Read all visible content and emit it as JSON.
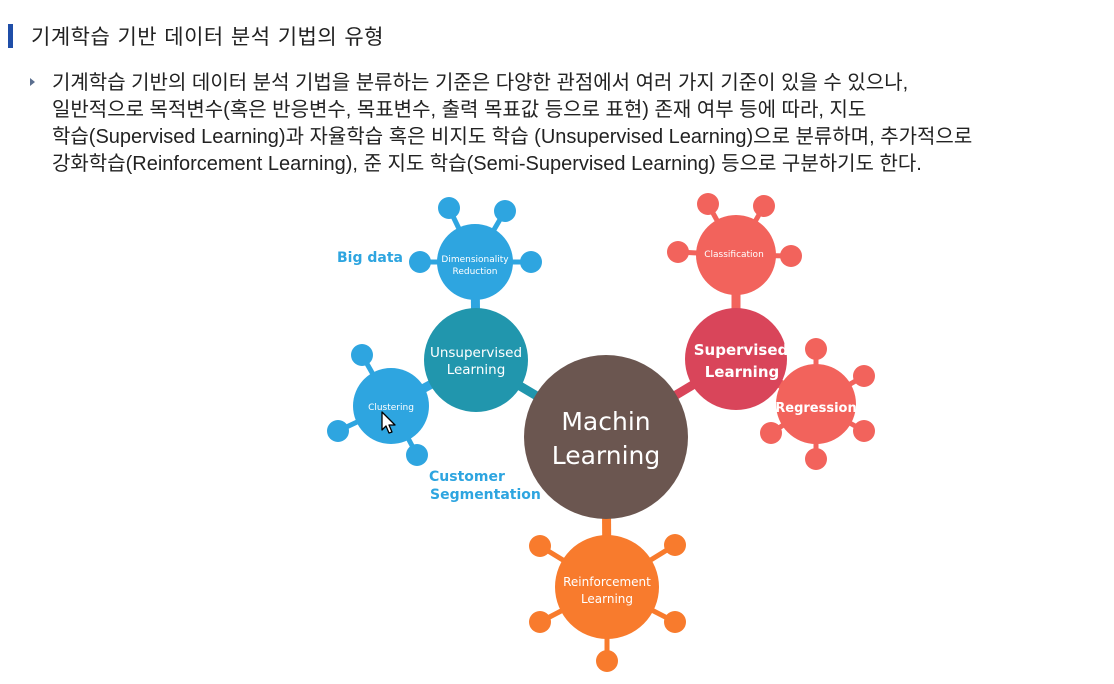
{
  "heading": {
    "text": "기계학습 기반 데이터 분석 기법의 유형",
    "bar_color": "#1f4ea8"
  },
  "paragraph": {
    "lines": [
      "기계학습 기반의 데이터 분석 기법을 분류하는 기준은 다양한 관점에서 여러 가지 기준이 있을 수 있으나,",
      "일반적으로 목적변수(혹은 반응변수, 목표변수, 출력 목표값 등으로 표현) 존재 여부 등에 따라, 지도",
      "학습(Supervised Learning)과 자율학습 혹은 비지도 학습 (Unsupervised Learning)으로 분류하며, 추가적으로",
      "강화학습(Reinforcement Learning), 준 지도 학습(Semi-Supervised Learning) 등으로 구분하기도 한다."
    ],
    "bullet_color": "#5b6f8f"
  },
  "diagram": {
    "center": {
      "line1": "Machin",
      "line2": "Learning",
      "color": "#6b5650"
    },
    "unsupervised": {
      "line1": "Unsupervised",
      "line2": "Learning",
      "color": "#2196ad"
    },
    "dimensionality": {
      "line1": "Dimensionality",
      "line2": "Reduction",
      "color": "#2ea5e0"
    },
    "clustering": {
      "line1": "Clustering",
      "color": "#2ea5e0"
    },
    "supervised": {
      "line1": "Supervised",
      "line2": "Learning",
      "color": "#d9455a"
    },
    "classification": {
      "line1": "Classification",
      "color": "#f2635c"
    },
    "regression": {
      "line1": "Regression",
      "color": "#f2635c"
    },
    "reinforcement": {
      "line1": "Reinforcement",
      "line2": "Learning",
      "color": "#f87b2d"
    },
    "annotations": {
      "big_data": "Big data",
      "customer_line1": "Customer",
      "customer_line2": "Segmentation",
      "color": "#2ea5e0"
    }
  }
}
